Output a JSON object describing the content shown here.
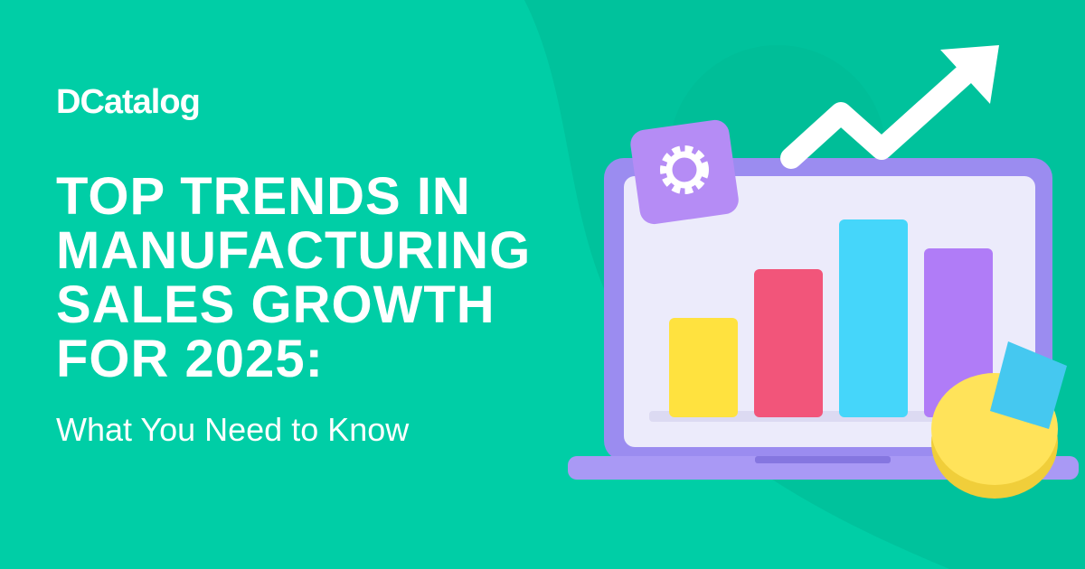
{
  "brand": {
    "logo_text": "DCatalog"
  },
  "headline": {
    "lines": [
      "TOP TRENDS IN",
      "MANUFACTURING",
      "SALES GROWTH",
      "FOR 2025:"
    ],
    "subtitle": "What You Need to Know"
  },
  "colors": {
    "background": "#00CEA6",
    "swoosh": "#00C29C",
    "laptop": "#9B8CF0",
    "screen": "#ECEBFB",
    "bar_yellow": "#FFE23F",
    "bar_red": "#F2557A",
    "bar_cyan": "#45D6FA",
    "bar_purple": "#B07CF7"
  },
  "icons": [
    "gear-icon",
    "trend-arrow-icon",
    "pie-chart-icon",
    "laptop-icon"
  ]
}
